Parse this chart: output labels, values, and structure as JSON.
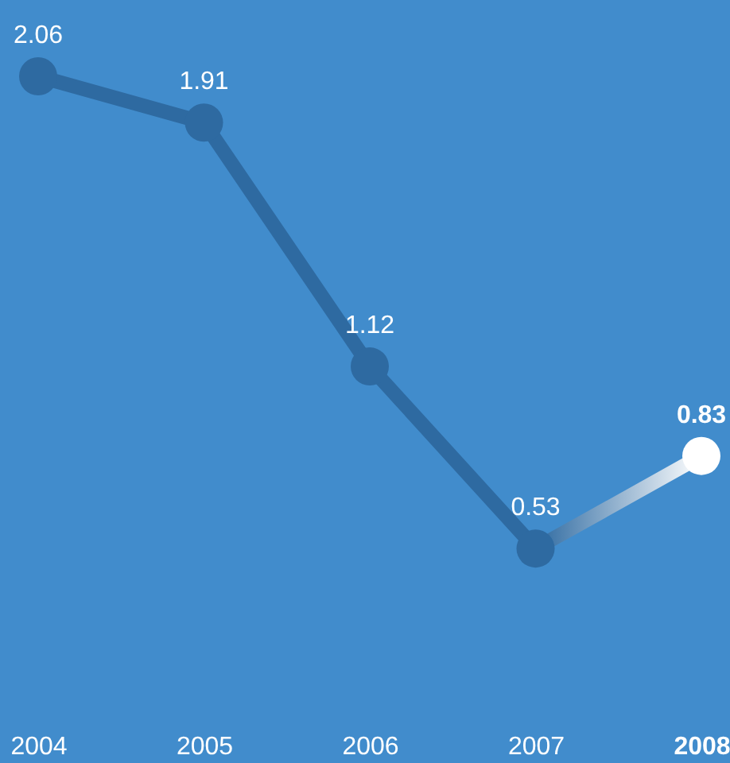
{
  "chart_data": {
    "type": "line",
    "categories": [
      "2004",
      "2005",
      "2006",
      "2007",
      "2008"
    ],
    "series": [
      {
        "color": "#2e6aa1",
        "colors": [
          "#2e6aa1",
          "#2e6aa1",
          "#2e6aa1",
          "#2e6aa1",
          "#ffffff"
        ],
        "values": [
          2.06,
          1.91,
          1.12,
          0.53,
          0.83
        ]
      }
    ],
    "tick_labels": "x",
    "data_labels": true,
    "marker": "circle",
    "line_style": "solid",
    "grid": false
  }
}
